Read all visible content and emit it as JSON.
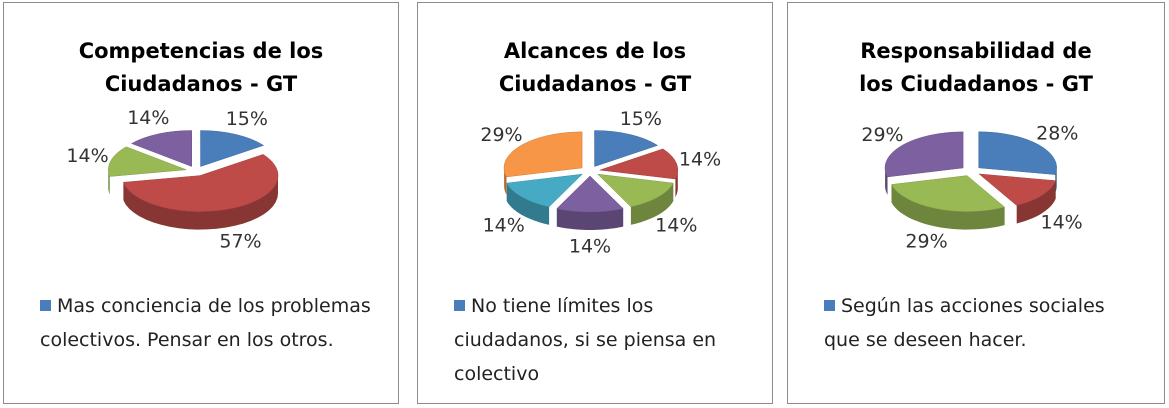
{
  "chart_data": [
    {
      "type": "pie",
      "title": "Competencias de los Ciudadanos - GT",
      "categories": [
        "Mas conciencia de los problemas colectivos. Pensar en los otros.",
        null,
        null,
        null
      ],
      "values": [
        15,
        57,
        14,
        14
      ],
      "value_labels": [
        "15%",
        "57%",
        "14%",
        "14%"
      ],
      "colors": [
        "#4a7ebb",
        "#be4b48",
        "#98b954",
        "#7d60a0"
      ]
    },
    {
      "type": "pie",
      "title": "Alcances de los Ciudadanos - GT",
      "categories": [
        "No tiene límites los ciudadanos, si se piensa en colectivo",
        null,
        null,
        null,
        null,
        null
      ],
      "values": [
        15,
        14,
        14,
        14,
        14,
        29
      ],
      "value_labels": [
        "15%",
        "14%",
        "14%",
        "14%",
        "14%",
        "29%"
      ],
      "colors": [
        "#4a7ebb",
        "#be4b48",
        "#98b954",
        "#7d60a0",
        "#46aac5",
        "#f79646"
      ]
    },
    {
      "type": "pie",
      "title": "Responsabilidad de los Ciudadanos - GT",
      "categories": [
        "Según las acciones sociales que se deseen hacer.",
        null,
        null,
        null
      ],
      "values": [
        28,
        14,
        29,
        29
      ],
      "value_labels": [
        "28%",
        "14%",
        "29%",
        "29%"
      ],
      "colors": [
        "#4a7ebb",
        "#be4b48",
        "#98b954",
        "#7d60a0"
      ]
    }
  ]
}
